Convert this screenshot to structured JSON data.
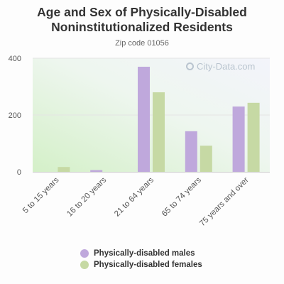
{
  "title_lines": [
    "Age and Sex of Physically-Disabled",
    "Noninstitutionalized Residents"
  ],
  "subtitle": "Zip code 01056",
  "watermark": "City-Data.com",
  "colors": {
    "males": "#bfa8dc",
    "females": "#c6d9a4"
  },
  "chart_data": {
    "type": "bar",
    "categories": [
      "5 to 15 years",
      "16 to 20 years",
      "21 to 64 years",
      "65 to 74 years",
      "75 years and over"
    ],
    "series": [
      {
        "name": "Physically-disabled males",
        "values": [
          0,
          6,
          370,
          143,
          230
        ]
      },
      {
        "name": "Physically-disabled females",
        "values": [
          17,
          0,
          280,
          92,
          243
        ]
      }
    ],
    "yticks": [
      0,
      200,
      400
    ],
    "ylim": [
      0,
      400
    ],
    "grid": false,
    "legend": "bottom"
  }
}
